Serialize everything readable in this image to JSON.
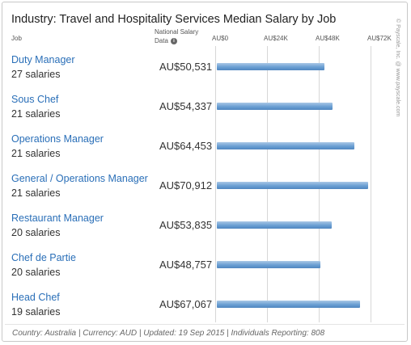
{
  "title": "Industry: Travel and Hospitality Services Median Salary by Job",
  "headers": {
    "job": "Job",
    "national_line1": "National Salary",
    "national_line2": "Data",
    "info_icon": "i"
  },
  "axis_ticks": [
    "AU$0",
    "AU$24K",
    "AU$48K",
    "AU$72K"
  ],
  "rows": [
    {
      "job": "Duty Manager",
      "count": "27 salaries",
      "salary": "AU$50,531"
    },
    {
      "job": "Sous Chef",
      "count": "21 salaries",
      "salary": "AU$54,337"
    },
    {
      "job": "Operations Manager",
      "count": "21 salaries",
      "salary": "AU$64,453"
    },
    {
      "job": "General / Operations Manager",
      "count": "21 salaries",
      "salary": "AU$70,912"
    },
    {
      "job": "Restaurant Manager",
      "count": "20 salaries",
      "salary": "AU$53,835"
    },
    {
      "job": "Chef de Partie",
      "count": "20 salaries",
      "salary": "AU$48,757"
    },
    {
      "job": "Head Chef",
      "count": "19 salaries",
      "salary": "AU$67,067"
    }
  ],
  "footer": "Country: Australia | Currency: AUD | Updated: 19 Sep 2015 | Individuals Reporting: 808",
  "watermark": "© Payscale, Inc. @ www.payscale.com",
  "colors": {
    "link": "#2a6fb8",
    "bar": "#5f96cf"
  },
  "chart_data": {
    "type": "bar",
    "orientation": "horizontal",
    "categories": [
      "Duty Manager",
      "Sous Chef",
      "Operations Manager",
      "General / Operations Manager",
      "Restaurant Manager",
      "Chef de Partie",
      "Head Chef"
    ],
    "values": [
      50531,
      54337,
      64453,
      70912,
      53835,
      48757,
      67067
    ],
    "xlim": [
      0,
      72000
    ],
    "xticks": [
      0,
      24000,
      48000,
      72000
    ],
    "grid": true
  }
}
